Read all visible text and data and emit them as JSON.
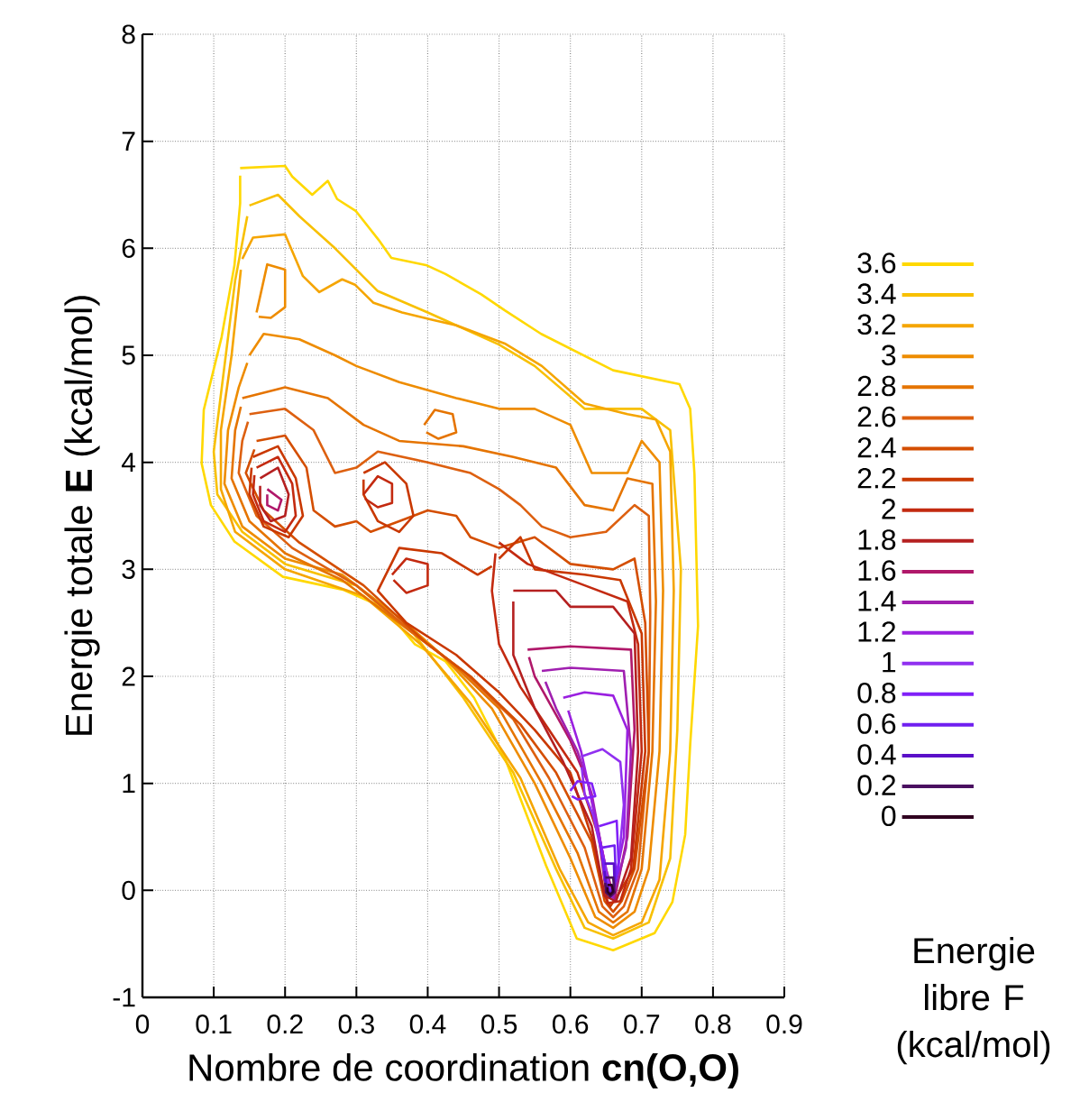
{
  "chart_data": {
    "type": "line",
    "xlabel": "Nombre de coordination **cn(O,O)**",
    "ylabel": "Energie totale **E** (kcal/mol)",
    "legend_title": "Energie libre F (kcal/mol)",
    "legend": "right",
    "grid": true,
    "xlim": [
      0,
      0.9
    ],
    "ylim": [
      -1,
      8
    ],
    "xticks": [
      0,
      0.1,
      0.2,
      0.3,
      0.4,
      0.5,
      0.6,
      0.7,
      0.8,
      0.9
    ],
    "yticks": [
      -1,
      0,
      1,
      2,
      3,
      4,
      5,
      6,
      7,
      8
    ],
    "series": [
      {
        "name": "3.6",
        "color": "#ffd800",
        "x": [
          0.137,
          0.2,
          0.21,
          0.238,
          0.26,
          0.273,
          0.299,
          0.331,
          0.349,
          0.399,
          0.425,
          0.475,
          0.508,
          0.559,
          0.66,
          0.753,
          0.768,
          0.774,
          0.779,
          0.768,
          0.761,
          0.743,
          0.718,
          0.66,
          0.609,
          0.566,
          0.508,
          0.465,
          0.425,
          0.382,
          0.339,
          0.281,
          0.197,
          0.129,
          0.096,
          0.083,
          0.086,
          0.111,
          0.129,
          0.137,
          0.137
        ],
        "values": [
          6.75,
          6.77,
          6.67,
          6.5,
          6.63,
          6.46,
          6.35,
          6.08,
          5.91,
          5.84,
          5.76,
          5.57,
          5.42,
          5.2,
          4.86,
          4.73,
          4.5,
          3.89,
          2.47,
          1.36,
          0.52,
          -0.11,
          -0.4,
          -0.56,
          -0.45,
          0.23,
          1.24,
          1.8,
          2.14,
          2.3,
          2.64,
          2.81,
          2.93,
          3.26,
          3.6,
          3.99,
          4.49,
          5.17,
          5.84,
          6.42,
          6.68
        ]
      },
      {
        "name": "3.4",
        "color": "#f8c000",
        "x": [
          0.15,
          0.19,
          0.22,
          0.27,
          0.33,
          0.4,
          0.5,
          0.55,
          0.62,
          0.7,
          0.74,
          0.755,
          0.75,
          0.74,
          0.71,
          0.66,
          0.62,
          0.58,
          0.52,
          0.45,
          0.38,
          0.3,
          0.2,
          0.14,
          0.105,
          0.1,
          0.115,
          0.13,
          0.147
        ],
        "values": [
          6.4,
          6.5,
          6.3,
          6.0,
          5.6,
          5.4,
          5.1,
          4.9,
          4.5,
          4.5,
          4.3,
          3.0,
          1.5,
          0.3,
          -0.3,
          -0.45,
          -0.35,
          0.2,
          1.1,
          1.8,
          2.4,
          2.85,
          3.05,
          3.35,
          3.7,
          4.1,
          4.9,
          5.7,
          6.3
        ]
      },
      {
        "name": "3.2",
        "color": "#f5a500",
        "x": [
          0.14,
          0.155,
          0.2,
          0.225,
          0.248,
          0.28,
          0.298,
          0.324,
          0.364,
          0.407,
          0.44,
          0.508,
          0.56,
          0.62,
          0.68,
          0.72,
          0.74,
          0.745,
          0.74,
          0.725,
          0.7,
          0.66,
          0.625,
          0.585,
          0.53,
          0.46,
          0.39,
          0.31,
          0.2,
          0.13,
          0.11,
          0.11,
          0.125,
          0.138
        ],
        "values": [
          5.9,
          6.1,
          6.13,
          5.74,
          5.59,
          5.71,
          5.66,
          5.49,
          5.4,
          5.33,
          5.28,
          5.11,
          4.9,
          4.55,
          4.45,
          4.4,
          4.1,
          2.8,
          1.3,
          0.1,
          -0.3,
          -0.42,
          -0.3,
          0.2,
          1.05,
          1.75,
          2.3,
          2.75,
          3.0,
          3.35,
          3.75,
          4.3,
          5.0,
          5.8
        ]
      },
      {
        "name": "3",
        "color": "#ee8c00",
        "x": [
          0.15,
          0.17,
          0.22,
          0.27,
          0.3,
          0.36,
          0.44,
          0.5,
          0.55,
          0.6,
          0.63,
          0.68,
          0.7,
          0.725,
          0.73,
          0.725,
          0.71,
          0.69,
          0.66,
          0.635,
          0.6,
          0.55,
          0.49,
          0.42,
          0.36,
          0.28,
          0.2,
          0.14,
          0.115,
          0.12,
          0.135,
          0.147,
          null,
          0.16,
          0.175,
          0.2,
          0.2,
          0.18,
          0.163
        ],
        "values": [
          5.0,
          5.2,
          5.15,
          5.0,
          4.9,
          4.75,
          4.6,
          4.5,
          4.5,
          4.35,
          3.9,
          3.9,
          4.2,
          4.0,
          2.8,
          1.3,
          0.2,
          -0.2,
          -0.35,
          -0.25,
          0.3,
          1.0,
          1.7,
          2.2,
          2.55,
          2.95,
          3.1,
          3.4,
          3.8,
          4.3,
          4.7,
          4.93,
          null,
          5.4,
          5.85,
          5.8,
          5.45,
          5.35,
          5.36
        ]
      },
      {
        "name": "2.8",
        "color": "#e57400",
        "x": [
          0.14,
          0.2,
          0.26,
          0.31,
          0.36,
          0.45,
          0.52,
          0.58,
          0.62,
          0.66,
          0.68,
          0.715,
          0.72,
          0.715,
          0.7,
          0.68,
          0.66,
          0.64,
          0.61,
          0.56,
          0.5,
          0.43,
          0.37,
          0.28,
          0.2,
          0.15,
          0.125,
          0.13,
          0.138,
          null,
          0.395,
          0.41,
          0.435,
          0.44,
          0.415,
          0.398
        ],
        "values": [
          4.6,
          4.7,
          4.6,
          4.35,
          4.2,
          4.15,
          4.05,
          3.95,
          3.6,
          3.55,
          3.85,
          3.8,
          2.7,
          1.3,
          0.2,
          -0.2,
          -0.3,
          -0.2,
          0.35,
          1.0,
          1.7,
          2.15,
          2.45,
          2.9,
          3.15,
          3.45,
          3.85,
          4.3,
          4.52,
          null,
          4.35,
          4.49,
          4.45,
          4.28,
          4.22,
          4.28
        ]
      },
      {
        "name": "2.6",
        "color": "#dd6010",
        "x": [
          0.15,
          0.2,
          0.24,
          0.27,
          0.3,
          0.33,
          0.4,
          0.46,
          0.5,
          0.53,
          0.56,
          0.6,
          0.65,
          0.69,
          0.71,
          0.712,
          0.71,
          0.695,
          0.675,
          0.66,
          0.645,
          0.62,
          0.57,
          0.52,
          0.45,
          0.39,
          0.3,
          0.21,
          0.16,
          0.135,
          0.14,
          0.148
        ],
        "values": [
          4.45,
          4.5,
          4.3,
          3.9,
          3.95,
          4.1,
          4.0,
          3.9,
          3.75,
          3.6,
          3.4,
          3.3,
          3.35,
          3.6,
          3.5,
          2.6,
          1.3,
          0.2,
          -0.15,
          -0.25,
          -0.15,
          0.4,
          1.05,
          1.6,
          2.05,
          2.35,
          2.85,
          3.2,
          3.5,
          3.9,
          4.2,
          4.38
        ]
      },
      {
        "name": "2.4",
        "color": "#d44e00",
        "x": [
          0.16,
          0.2,
          0.23,
          0.24,
          0.27,
          0.3,
          0.32,
          0.36,
          0.4,
          0.44,
          0.46,
          0.5,
          0.55,
          0.6,
          0.66,
          0.69,
          0.705,
          0.71,
          0.69,
          0.672,
          0.66,
          0.648,
          0.63,
          0.58,
          0.53,
          0.46,
          0.4,
          0.31,
          0.22,
          0.17,
          0.145,
          0.157
        ],
        "values": [
          4.2,
          4.25,
          3.95,
          3.55,
          3.4,
          3.45,
          3.35,
          3.45,
          3.55,
          3.5,
          3.3,
          3.2,
          3.3,
          3.05,
          3.0,
          3.1,
          2.5,
          1.3,
          0.2,
          -0.1,
          -0.2,
          -0.1,
          0.45,
          1.1,
          1.55,
          2.0,
          2.3,
          2.85,
          3.25,
          3.55,
          3.9,
          4.12
        ]
      },
      {
        "name": "2.2",
        "color": "#c93800",
        "x": [
          0.155,
          0.19,
          0.215,
          0.225,
          0.205,
          0.17,
          0.15,
          0.153,
          null,
          0.31,
          0.34,
          0.37,
          0.38,
          0.36,
          0.33,
          0.31,
          0.31,
          null,
          0.5,
          0.53,
          0.55,
          0.62,
          0.67,
          0.7,
          0.705,
          0.688,
          0.666,
          0.656,
          0.648,
          0.63,
          0.6,
          0.55,
          0.5,
          0.44,
          0.37,
          0.33,
          0.36,
          0.42,
          0.47,
          0.49
        ],
        "values": [
          4.05,
          4.15,
          3.85,
          3.5,
          3.3,
          3.4,
          3.7,
          3.95,
          null,
          3.9,
          4.0,
          3.8,
          3.5,
          3.35,
          3.45,
          3.7,
          3.84,
          null,
          3.1,
          3.3,
          3.0,
          2.95,
          2.9,
          2.4,
          1.3,
          0.2,
          -0.05,
          -0.15,
          -0.05,
          0.5,
          1.1,
          1.5,
          1.85,
          2.2,
          2.5,
          2.8,
          3.2,
          3.15,
          2.95,
          3.03
        ]
      },
      {
        "name": "2",
        "color": "#c32a10",
        "x": [
          0.16,
          0.19,
          0.21,
          0.215,
          0.2,
          0.17,
          0.155,
          0.157,
          null,
          0.31,
          0.33,
          0.35,
          0.35,
          0.33,
          0.312,
          null,
          0.35,
          0.37,
          0.4,
          0.4,
          0.37,
          0.352,
          null,
          0.5,
          0.54,
          0.62,
          0.68,
          0.695,
          0.7,
          0.685,
          0.67,
          0.652,
          0.64,
          0.61,
          0.57,
          0.53,
          0.5,
          0.49,
          0.495
        ],
        "values": [
          3.95,
          4.05,
          3.8,
          3.5,
          3.35,
          3.45,
          3.7,
          3.88,
          null,
          3.7,
          3.87,
          3.8,
          3.62,
          3.58,
          3.66,
          null,
          2.95,
          3.1,
          3.05,
          2.85,
          2.78,
          2.9,
          null,
          3.25,
          3.05,
          2.85,
          2.7,
          2.3,
          1.3,
          0.2,
          -0.1,
          -0.12,
          0.5,
          1.1,
          1.5,
          1.9,
          2.3,
          2.8,
          3.15
        ]
      },
      {
        "name": "1.8",
        "color": "#b52020",
        "x": [
          0.165,
          0.19,
          0.205,
          0.2,
          0.18,
          0.165,
          0.165,
          null,
          0.52,
          0.58,
          0.6,
          0.66,
          0.69,
          0.695,
          0.685,
          0.664,
          0.648,
          0.63,
          0.59,
          0.55,
          0.52,
          0.52
        ],
        "values": [
          3.85,
          3.95,
          3.7,
          3.5,
          3.45,
          3.6,
          3.78,
          null,
          2.8,
          2.8,
          2.65,
          2.65,
          2.4,
          1.3,
          0.3,
          -0.1,
          -0.05,
          0.6,
          1.2,
          1.7,
          2.2,
          2.7
        ]
      },
      {
        "name": "1.6",
        "color": "#b0186a",
        "x": [
          0.175,
          0.195,
          0.19,
          0.175,
          0.175,
          null,
          0.54,
          0.6,
          0.685,
          0.69,
          0.68,
          0.662,
          0.65,
          0.625,
          0.6,
          0.55,
          0.542
        ],
        "values": [
          3.75,
          3.65,
          3.55,
          3.6,
          3.7,
          null,
          2.25,
          2.28,
          2.25,
          1.5,
          0.5,
          -0.08,
          0.2,
          1.0,
          1.4,
          2.0,
          2.18
        ]
      },
      {
        "name": "1.4",
        "color": "#a020b0",
        "x": [
          0.56,
          0.6,
          0.675,
          0.685,
          0.678,
          0.66,
          0.652,
          0.63,
          0.61,
          0.58,
          0.565
        ],
        "values": [
          2.05,
          2.08,
          2.05,
          1.3,
          0.4,
          -0.07,
          0.1,
          0.9,
          1.3,
          1.7,
          1.95
        ]
      },
      {
        "name": "1.2",
        "color": "#9a20e0",
        "x": [
          0.59,
          0.62,
          0.66,
          0.68,
          0.675,
          0.658,
          0.65,
          0.628,
          0.615,
          0.597
        ],
        "values": [
          1.8,
          1.85,
          1.82,
          1.5,
          0.5,
          -0.06,
          0.2,
          0.9,
          1.3,
          1.68
        ]
      },
      {
        "name": "1",
        "color": "#9030f0",
        "x": [
          0.615,
          0.645,
          0.67,
          0.675,
          0.667,
          0.657,
          0.649,
          0.632,
          0.62,
          0.616
        ],
        "values": [
          1.25,
          1.32,
          1.2,
          0.8,
          0.2,
          -0.05,
          0.2,
          0.7,
          0.9,
          1.15
        ]
      },
      {
        "name": "0.8",
        "color": "#8020f8",
        "x": [
          0.6,
          0.61,
          0.63,
          0.635,
          0.61,
          0.602,
          null,
          0.64,
          0.665,
          0.668,
          0.656,
          0.648,
          0.642
        ],
        "values": [
          0.93,
          1.02,
          1.0,
          0.88,
          0.85,
          0.88,
          null,
          0.6,
          0.65,
          0.2,
          -0.04,
          0.1,
          0.45
        ]
      },
      {
        "name": "0.6",
        "color": "#7020f0",
        "x": [
          0.645,
          0.662,
          0.664,
          0.656,
          0.649,
          0.646
        ],
        "values": [
          0.4,
          0.42,
          0.1,
          -0.03,
          0.1,
          0.3
        ]
      },
      {
        "name": "0.4",
        "color": "#5a10c8",
        "x": [
          0.648,
          0.661,
          0.662,
          0.656,
          0.65,
          0.648
        ],
        "values": [
          0.25,
          0.25,
          0.05,
          -0.05,
          0.05,
          0.18
        ]
      },
      {
        "name": "0.2",
        "color": "#4a1060",
        "x": [
          0.649,
          0.66,
          0.662,
          0.656,
          0.65,
          0.649
        ],
        "values": [
          0.12,
          0.12,
          -0.02,
          -0.06,
          -0.02,
          0.07
        ]
      },
      {
        "name": "0",
        "color": "#300020",
        "x": [
          0.652,
          0.658,
          0.66,
          0.656,
          0.652,
          0.652
        ],
        "values": [
          0.05,
          0.05,
          -0.01,
          -0.04,
          -0.01,
          0.03
        ]
      }
    ]
  }
}
